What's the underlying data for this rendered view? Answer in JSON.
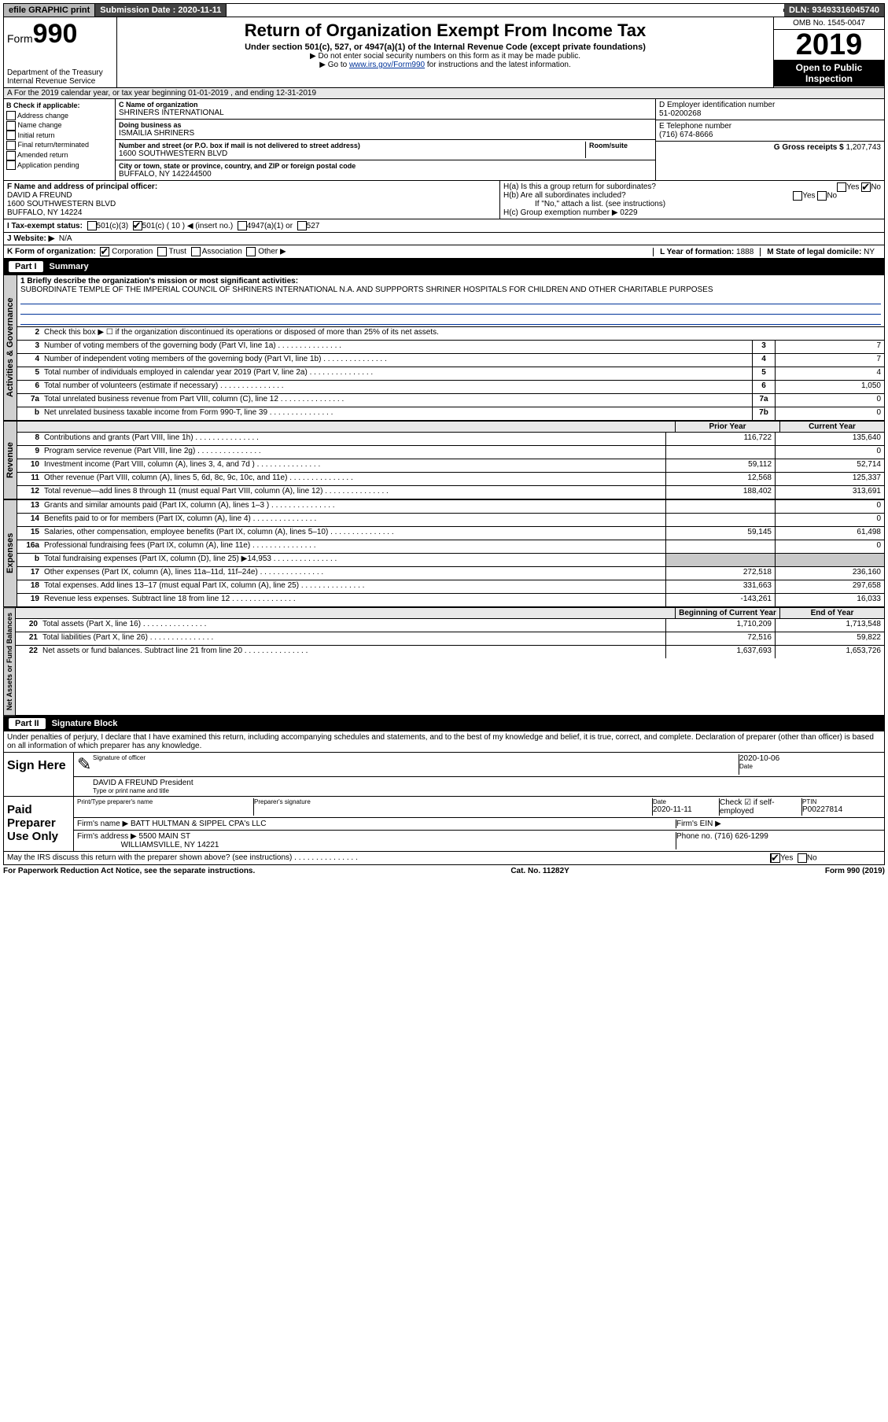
{
  "topbar": {
    "efile": "efile GRAPHIC print",
    "subdate_label": "Submission Date : 2020-11-11",
    "dln": "DLN: 93493316045740"
  },
  "header": {
    "form_label": "Form",
    "form_number": "990",
    "dept": "Department of the Treasury\nInternal Revenue Service",
    "title": "Return of Organization Exempt From Income Tax",
    "subtitle": "Under section 501(c), 527, or 4947(a)(1) of the Internal Revenue Code (except private foundations)",
    "note1": "▶ Do not enter social security numbers on this form as it may be made public.",
    "note2_pre": "▶ Go to ",
    "note2_link": "www.irs.gov/Form990",
    "note2_post": " for instructions and the latest information.",
    "omb": "OMB No. 1545-0047",
    "year": "2019",
    "otp": "Open to Public Inspection"
  },
  "row_a": "A For the 2019 calendar year, or tax year beginning 01-01-2019   , and ending 12-31-2019",
  "col_b": {
    "hdr": "B Check if applicable:",
    "items": [
      "Address change",
      "Name change",
      "Initial return",
      "Final return/terminated",
      "Amended return",
      "Application pending"
    ]
  },
  "col_c": {
    "name_lbl": "C Name of organization",
    "name": "SHRINERS INTERNATIONAL",
    "dba_lbl": "Doing business as",
    "dba": "ISMAILIA SHRINERS",
    "addr_lbl": "Number and street (or P.O. box if mail is not delivered to street address)",
    "room_lbl": "Room/suite",
    "addr": "1600 SOUTHWESTERN BLVD",
    "city_lbl": "City or town, state or province, country, and ZIP or foreign postal code",
    "city": "BUFFALO, NY  142244500"
  },
  "col_de": {
    "ein_lbl": "D Employer identification number",
    "ein": "51-0200268",
    "phone_lbl": "E Telephone number",
    "phone": "(716) 674-8666",
    "gross_lbl": "G Gross receipts $ ",
    "gross": "1,207,743"
  },
  "row_f": {
    "lbl": "F Name and address of principal officer:",
    "name": "DAVID A FREUND",
    "addr1": "1600 SOUTHWESTERN BLVD",
    "addr2": "BUFFALO, NY  14224"
  },
  "row_h": {
    "ha": "H(a)  Is this a group return for subordinates?",
    "hb": "H(b)  Are all subordinates included?",
    "hb_note": "If \"No,\" attach a list. (see instructions)",
    "hc": "H(c)  Group exemption number ▶   0229"
  },
  "row_i": {
    "lbl": "I  Tax-exempt status:",
    "c10": "501(c) ( 10 ) ◀ (insert no.)"
  },
  "row_j": {
    "lbl": "J  Website: ▶",
    "val": "N/A"
  },
  "row_k": {
    "lbl": "K Form of organization:",
    "year_lbl": "L Year of formation: ",
    "year": "1888",
    "state_lbl": "M State of legal domicile: ",
    "state": "NY"
  },
  "part1": {
    "num": "Part I",
    "title": "Summary"
  },
  "mission": {
    "lbl": "1 Briefly describe the organization's mission or most significant activities:",
    "txt": "SUBORDINATE TEMPLE OF THE IMPERIAL COUNCIL OF SHRINERS INTERNATIONAL N.A. AND SUPPPORTS SHRINER HOSPITALS FOR CHILDREN AND OTHER CHARITABLE PURPOSES"
  },
  "gov": {
    "l2": "Check this box ▶ ☐  if the organization discontinued its operations or disposed of more than 25% of its net assets.",
    "lines": [
      {
        "n": "3",
        "t": "Number of voting members of the governing body (Part VI, line 1a)",
        "b": "3",
        "v": "7"
      },
      {
        "n": "4",
        "t": "Number of independent voting members of the governing body (Part VI, line 1b)",
        "b": "4",
        "v": "7"
      },
      {
        "n": "5",
        "t": "Total number of individuals employed in calendar year 2019 (Part V, line 2a)",
        "b": "5",
        "v": "4"
      },
      {
        "n": "6",
        "t": "Total number of volunteers (estimate if necessary)",
        "b": "6",
        "v": "1,050"
      },
      {
        "n": "7a",
        "t": "Total unrelated business revenue from Part VIII, column (C), line 12",
        "b": "7a",
        "v": "0"
      },
      {
        "n": "b",
        "t": "Net unrelated business taxable income from Form 990-T, line 39",
        "b": "7b",
        "v": "0"
      }
    ]
  },
  "pc_hdr": {
    "p": "Prior Year",
    "c": "Current Year"
  },
  "rev": [
    {
      "n": "8",
      "t": "Contributions and grants (Part VIII, line 1h)",
      "p": "116,722",
      "c": "135,640"
    },
    {
      "n": "9",
      "t": "Program service revenue (Part VIII, line 2g)",
      "p": "",
      "c": "0"
    },
    {
      "n": "10",
      "t": "Investment income (Part VIII, column (A), lines 3, 4, and 7d )",
      "p": "59,112",
      "c": "52,714"
    },
    {
      "n": "11",
      "t": "Other revenue (Part VIII, column (A), lines 5, 6d, 8c, 9c, 10c, and 11e)",
      "p": "12,568",
      "c": "125,337"
    },
    {
      "n": "12",
      "t": "Total revenue—add lines 8 through 11 (must equal Part VIII, column (A), line 12)",
      "p": "188,402",
      "c": "313,691"
    }
  ],
  "exp": [
    {
      "n": "13",
      "t": "Grants and similar amounts paid (Part IX, column (A), lines 1–3 )",
      "p": "",
      "c": "0"
    },
    {
      "n": "14",
      "t": "Benefits paid to or for members (Part IX, column (A), line 4)",
      "p": "",
      "c": "0"
    },
    {
      "n": "15",
      "t": "Salaries, other compensation, employee benefits (Part IX, column (A), lines 5–10)",
      "p": "59,145",
      "c": "61,498"
    },
    {
      "n": "16a",
      "t": "Professional fundraising fees (Part IX, column (A), line 11e)",
      "p": "",
      "c": "0"
    },
    {
      "n": "b",
      "t": "Total fundraising expenses (Part IX, column (D), line 25) ▶14,953",
      "p": "shade",
      "c": "shade"
    },
    {
      "n": "17",
      "t": "Other expenses (Part IX, column (A), lines 11a–11d, 11f–24e)",
      "p": "272,518",
      "c": "236,160"
    },
    {
      "n": "18",
      "t": "Total expenses. Add lines 13–17 (must equal Part IX, column (A), line 25)",
      "p": "331,663",
      "c": "297,658"
    },
    {
      "n": "19",
      "t": "Revenue less expenses. Subtract line 18 from line 12",
      "p": "-143,261",
      "c": "16,033"
    }
  ],
  "na_hdr": {
    "p": "Beginning of Current Year",
    "c": "End of Year"
  },
  "na": [
    {
      "n": "20",
      "t": "Total assets (Part X, line 16)",
      "p": "1,710,209",
      "c": "1,713,548"
    },
    {
      "n": "21",
      "t": "Total liabilities (Part X, line 26)",
      "p": "72,516",
      "c": "59,822"
    },
    {
      "n": "22",
      "t": "Net assets or fund balances. Subtract line 21 from line 20",
      "p": "1,637,693",
      "c": "1,653,726"
    }
  ],
  "part2": {
    "num": "Part II",
    "title": "Signature Block"
  },
  "sig": {
    "decl": "Under penalties of perjury, I declare that I have examined this return, including accompanying schedules and statements, and to the best of my knowledge and belief, it is true, correct, and complete. Declaration of preparer (other than officer) is based on all information of which preparer has any knowledge.",
    "here": "Sign Here",
    "sig_of": "Signature of officer",
    "date": "2020-10-06",
    "date_lbl": "Date",
    "name": "DAVID A FREUND  President",
    "name_lbl": "Type or print name and title",
    "paid": "Paid Preparer Use Only",
    "prep_name_lbl": "Print/Type preparer's name",
    "prep_sig_lbl": "Preparer's signature",
    "prep_date": "2020-11-11",
    "prep_chk": "Check ☑ if self-employed",
    "ptin_lbl": "PTIN",
    "ptin": "P00227814",
    "firm_lbl": "Firm's name    ▶ ",
    "firm": "BATT HULTMAN & SIPPEL CPA's LLC",
    "firm_ein": "Firm's EIN ▶",
    "firm_addr_lbl": "Firm's address ▶ ",
    "firm_addr": "5500 MAIN ST",
    "firm_city": "WILLIAMSVILLE, NY  14221",
    "firm_phone": "Phone no. (716) 626-1299",
    "may": "May the IRS discuss this return with the preparer shown above? (see instructions)"
  },
  "footer": {
    "l": "For Paperwork Reduction Act Notice, see the separate instructions.",
    "c": "Cat. No. 11282Y",
    "r": "Form 990 (2019)"
  },
  "vtabs": {
    "gov": "Activities & Governance",
    "rev": "Revenue",
    "exp": "Expenses",
    "na": "Net Assets or Fund Balances"
  }
}
